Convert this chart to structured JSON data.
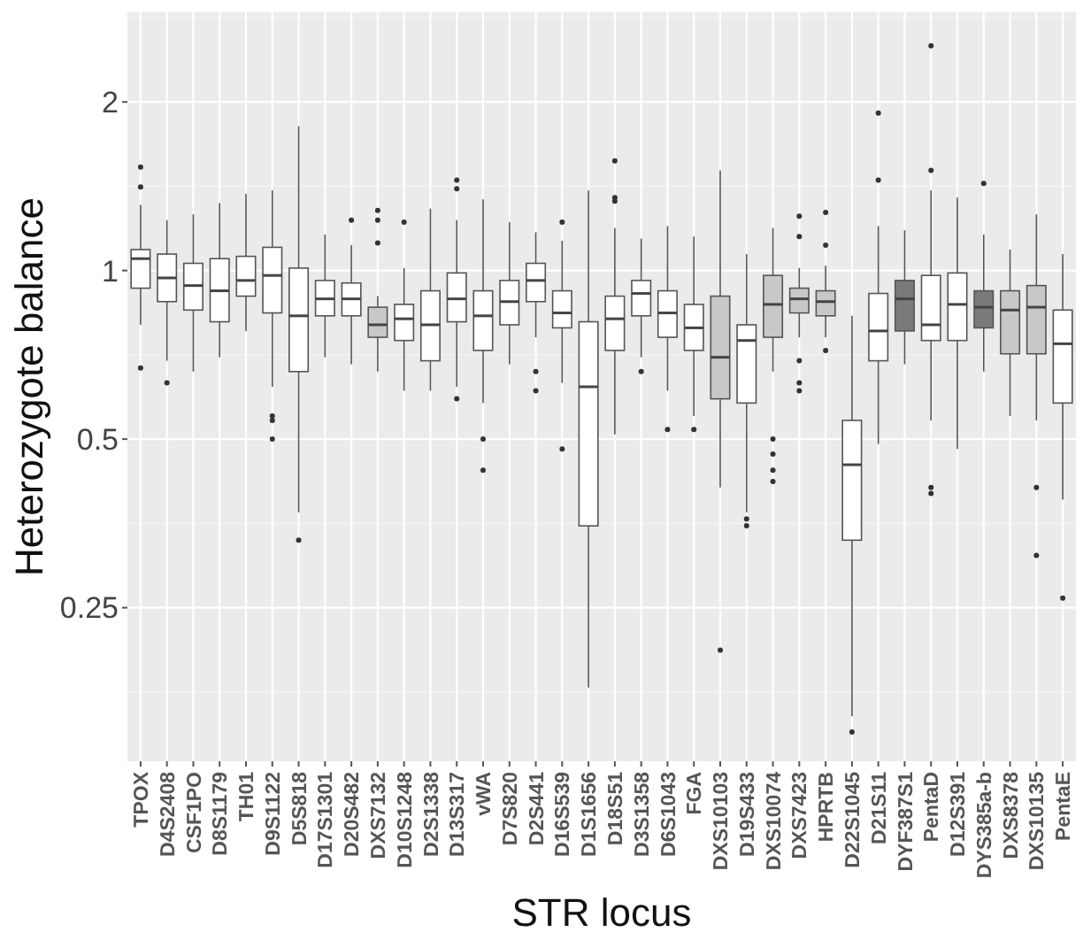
{
  "chart_data": {
    "type": "box",
    "xlabel": "STR locus",
    "ylabel": "Heterozygote balance",
    "log": true,
    "grid": true,
    "ylim": [
      0.133,
      2.89
    ],
    "yticks": [
      0.25,
      0.5,
      1,
      2
    ],
    "categories": [
      "TPOX",
      "D4S2408",
      "CSF1PO",
      "D8S1179",
      "TH01",
      "D9S1122",
      "D5S818",
      "D17S1301",
      "D20S482",
      "DXS7132",
      "D10S1248",
      "D2S1338",
      "D13S317",
      "vWA",
      "D7S820",
      "D2S441",
      "D16S539",
      "D1S1656",
      "D18S51",
      "D3S1358",
      "D6S1043",
      "FGA",
      "DXS10103",
      "D19S433",
      "DXS10074",
      "DXS7423",
      "HPRTB",
      "D22S1045",
      "D21S11",
      "DYF387S1",
      "PentaD",
      "D12S391",
      "DYS385a-b",
      "DXS8378",
      "DXS10135",
      "PentaE"
    ],
    "colors": [
      "#ffffff",
      "#ffffff",
      "#ffffff",
      "#ffffff",
      "#ffffff",
      "#ffffff",
      "#ffffff",
      "#ffffff",
      "#ffffff",
      "#c8c8c8",
      "#ffffff",
      "#ffffff",
      "#ffffff",
      "#ffffff",
      "#ffffff",
      "#ffffff",
      "#ffffff",
      "#ffffff",
      "#ffffff",
      "#ffffff",
      "#ffffff",
      "#ffffff",
      "#c8c8c8",
      "#ffffff",
      "#c8c8c8",
      "#c8c8c8",
      "#c8c8c8",
      "#ffffff",
      "#ffffff",
      "#7a7a7a",
      "#ffffff",
      "#ffffff",
      "#7a7a7a",
      "#c8c8c8",
      "#c8c8c8",
      "#ffffff"
    ],
    "boxes": [
      {
        "low": 0.8,
        "q1": 0.93,
        "median": 1.05,
        "q3": 1.09,
        "high": 1.31,
        "outliers": [
          1.53,
          1.41,
          0.67
        ]
      },
      {
        "low": 0.69,
        "q1": 0.88,
        "median": 0.97,
        "q3": 1.07,
        "high": 1.23,
        "outliers": [
          0.63
        ]
      },
      {
        "low": 0.66,
        "q1": 0.85,
        "median": 0.94,
        "q3": 1.03,
        "high": 1.26
      },
      {
        "low": 0.7,
        "q1": 0.81,
        "median": 0.92,
        "q3": 1.05,
        "high": 1.32
      },
      {
        "low": 0.78,
        "q1": 0.9,
        "median": 0.96,
        "q3": 1.06,
        "high": 1.37
      },
      {
        "low": 0.62,
        "q1": 0.84,
        "median": 0.98,
        "q3": 1.1,
        "high": 1.39,
        "outliers": [
          0.55,
          0.54,
          0.5
        ]
      },
      {
        "low": 0.37,
        "q1": 0.66,
        "median": 0.83,
        "q3": 1.01,
        "high": 1.81,
        "outliers": [
          0.33
        ]
      },
      {
        "low": 0.7,
        "q1": 0.83,
        "median": 0.89,
        "q3": 0.96,
        "high": 1.16
      },
      {
        "low": 0.68,
        "q1": 0.83,
        "median": 0.89,
        "q3": 0.95,
        "high": 1.11,
        "outliers": [
          1.23
        ]
      },
      {
        "low": 0.66,
        "q1": 0.76,
        "median": 0.8,
        "q3": 0.86,
        "high": 0.9,
        "outliers": [
          1.28,
          1.23,
          1.12
        ]
      },
      {
        "low": 0.61,
        "q1": 0.75,
        "median": 0.82,
        "q3": 0.87,
        "high": 1.01,
        "outliers": [
          1.22
        ]
      },
      {
        "low": 0.61,
        "q1": 0.69,
        "median": 0.8,
        "q3": 0.92,
        "high": 1.29
      },
      {
        "low": 0.62,
        "q1": 0.81,
        "median": 0.89,
        "q3": 0.99,
        "high": 1.23,
        "outliers": [
          1.45,
          1.4,
          0.59
        ]
      },
      {
        "low": 0.58,
        "q1": 0.72,
        "median": 0.83,
        "q3": 0.92,
        "high": 1.34,
        "outliers": [
          0.5,
          0.44
        ]
      },
      {
        "low": 0.68,
        "q1": 0.8,
        "median": 0.88,
        "q3": 0.96,
        "high": 1.22
      },
      {
        "low": 0.76,
        "q1": 0.88,
        "median": 0.96,
        "q3": 1.03,
        "high": 1.17,
        "outliers": [
          0.66,
          0.61
        ]
      },
      {
        "low": 0.63,
        "q1": 0.79,
        "median": 0.84,
        "q3": 0.92,
        "high": 1.13,
        "outliers": [
          1.22,
          0.48
        ]
      },
      {
        "low": 0.18,
        "q1": 0.35,
        "median": 0.62,
        "q3": 0.81,
        "high": 1.39
      },
      {
        "low": 0.51,
        "q1": 0.72,
        "median": 0.82,
        "q3": 0.9,
        "high": 1.19,
        "outliers": [
          1.57,
          1.35,
          1.33
        ]
      },
      {
        "low": 0.7,
        "q1": 0.83,
        "median": 0.91,
        "q3": 0.96,
        "high": 1.14,
        "outliers": [
          0.66
        ]
      },
      {
        "low": 0.61,
        "q1": 0.76,
        "median": 0.84,
        "q3": 0.92,
        "high": 1.2,
        "outliers": [
          0.52
        ]
      },
      {
        "low": 0.55,
        "q1": 0.72,
        "median": 0.79,
        "q3": 0.87,
        "high": 1.15,
        "outliers": [
          0.52
        ]
      },
      {
        "low": 0.41,
        "q1": 0.59,
        "median": 0.7,
        "q3": 0.9,
        "high": 1.51,
        "outliers": [
          0.21
        ]
      },
      {
        "low": 0.37,
        "q1": 0.58,
        "median": 0.75,
        "q3": 0.8,
        "high": 1.07,
        "outliers": [
          0.36,
          0.35
        ]
      },
      {
        "low": 0.66,
        "q1": 0.76,
        "median": 0.87,
        "q3": 0.98,
        "high": 1.19,
        "outliers": [
          0.5,
          0.47,
          0.44,
          0.42
        ]
      },
      {
        "low": 0.76,
        "q1": 0.84,
        "median": 0.89,
        "q3": 0.93,
        "high": 1.01,
        "outliers": [
          1.25,
          1.15,
          0.69,
          0.63,
          0.61
        ]
      },
      {
        "low": 0.76,
        "q1": 0.83,
        "median": 0.88,
        "q3": 0.92,
        "high": 1.02,
        "outliers": [
          1.27,
          1.11,
          0.72
        ]
      },
      {
        "low": 0.16,
        "q1": 0.33,
        "median": 0.45,
        "q3": 0.54,
        "high": 0.83,
        "outliers": [
          0.15
        ]
      },
      {
        "low": 0.49,
        "q1": 0.69,
        "median": 0.78,
        "q3": 0.91,
        "high": 1.2,
        "outliers": [
          1.91,
          1.45
        ]
      },
      {
        "low": 0.68,
        "q1": 0.78,
        "median": 0.89,
        "q3": 0.96,
        "high": 1.18
      },
      {
        "low": 0.54,
        "q1": 0.75,
        "median": 0.8,
        "q3": 0.98,
        "high": 1.39,
        "outliers": [
          2.52,
          1.51,
          0.41,
          0.4
        ]
      },
      {
        "low": 0.48,
        "q1": 0.75,
        "median": 0.87,
        "q3": 0.99,
        "high": 1.35
      },
      {
        "low": 0.66,
        "q1": 0.79,
        "median": 0.86,
        "q3": 0.92,
        "high": 1.16,
        "outliers": [
          1.43
        ]
      },
      {
        "low": 0.55,
        "q1": 0.71,
        "median": 0.85,
        "q3": 0.92,
        "high": 1.09
      },
      {
        "low": 0.54,
        "q1": 0.71,
        "median": 0.86,
        "q3": 0.94,
        "high": 1.26,
        "outliers": [
          0.41,
          0.31
        ]
      },
      {
        "low": 0.39,
        "q1": 0.58,
        "median": 0.74,
        "q3": 0.85,
        "high": 1.07,
        "outliers": [
          0.26
        ]
      }
    ]
  }
}
